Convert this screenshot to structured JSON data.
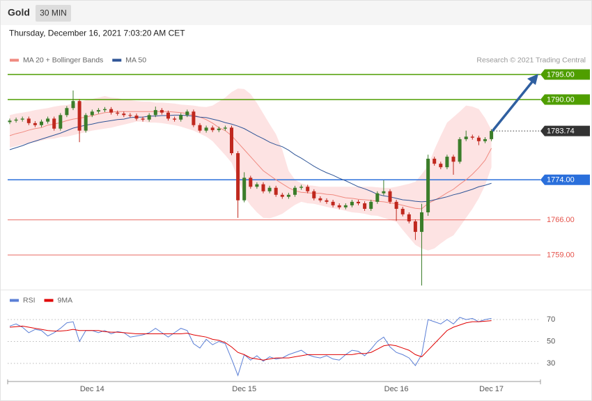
{
  "header": {
    "symbol": "Gold",
    "timeframe": "30 MIN",
    "timestamp": "Thursday, December 16, 2021 7:03:20 AM CET"
  },
  "chart_data": [
    {
      "type": "candlestick",
      "source": "Research © 2021 Trading Central",
      "categories": [
        null,
        null,
        null,
        null,
        null,
        null,
        null,
        null,
        null,
        null,
        null,
        null,
        null,
        "Dec 14",
        null,
        null,
        null,
        null,
        null,
        null,
        null,
        null,
        null,
        null,
        null,
        null,
        null,
        null,
        null,
        null,
        null,
        null,
        null,
        null,
        null,
        null,
        null,
        "Dec 15",
        null,
        null,
        null,
        null,
        null,
        null,
        null,
        null,
        null,
        null,
        null,
        null,
        null,
        null,
        null,
        null,
        null,
        null,
        null,
        null,
        null,
        null,
        null,
        "Dec 16",
        null,
        null,
        null,
        null,
        null,
        null,
        null,
        null,
        null,
        null,
        null,
        null,
        null,
        null,
        "Dec 17"
      ],
      "open": [
        1785.5,
        1785.8,
        1786.0,
        1786.2,
        1785.3,
        1784.9,
        1785.6,
        1786.2,
        1784.2,
        1786.9,
        1788.3,
        1789.7,
        1783.8,
        1786.9,
        1787.6,
        1787.9,
        1788.1,
        1787.4,
        1787.2,
        1786.9,
        1786.8,
        1786.2,
        1786.0,
        1786.9,
        1787.9,
        1787.4,
        1786.2,
        1786.0,
        1786.9,
        1787.6,
        1784.9,
        1783.8,
        1784.4,
        1783.9,
        1784.2,
        1784.4,
        1779.3,
        1769.9,
        1774.4,
        1772.6,
        1773.1,
        1771.7,
        1772.4,
        1771.0,
        1770.6,
        1771.0,
        1772.4,
        1772.6,
        1771.7,
        1770.3,
        1769.9,
        1769.6,
        1768.9,
        1768.5,
        1768.9,
        1769.6,
        1769.3,
        1768.2,
        1769.6,
        1771.3,
        1771.7,
        1769.6,
        1768.2,
        1767.1,
        1765.7,
        1763.6,
        1767.5,
        1778.2,
        1777.2,
        1776.5,
        1778.6,
        1777.6,
        1782.1,
        1782.6,
        1782.4,
        1781.7,
        1782.1
      ],
      "high": [
        1786.2,
        1786.4,
        1786.6,
        1786.6,
        1785.7,
        1786.0,
        1786.6,
        1786.6,
        1787.3,
        1788.7,
        1791.8,
        1790.1,
        1787.3,
        1788.0,
        1788.3,
        1788.5,
        1788.5,
        1787.8,
        1787.6,
        1787.3,
        1787.2,
        1786.6,
        1787.3,
        1788.6,
        1788.3,
        1787.8,
        1786.6,
        1787.3,
        1788.0,
        1788.0,
        1785.3,
        1784.8,
        1784.8,
        1784.6,
        1784.8,
        1784.8,
        1779.7,
        1775.5,
        1774.8,
        1773.5,
        1773.5,
        1772.8,
        1772.8,
        1771.4,
        1771.4,
        1772.8,
        1773.0,
        1773.0,
        1772.1,
        1770.7,
        1770.3,
        1770.0,
        1769.3,
        1769.3,
        1770.0,
        1770.0,
        1769.7,
        1770.0,
        1771.7,
        1773.9,
        1772.1,
        1770.0,
        1768.6,
        1767.5,
        1766.1,
        1769.2,
        1779.0,
        1778.6,
        1777.6,
        1779.0,
        1779.0,
        1782.5,
        1783.8,
        1783.0,
        1782.8,
        1782.5,
        1784.1
      ],
      "low": [
        1785.1,
        1785.4,
        1785.6,
        1784.9,
        1784.5,
        1784.5,
        1785.2,
        1783.8,
        1783.8,
        1786.5,
        1787.9,
        1781.5,
        1783.4,
        1786.5,
        1787.2,
        1787.5,
        1787.0,
        1786.8,
        1786.5,
        1786.4,
        1785.8,
        1785.6,
        1785.6,
        1786.5,
        1787.0,
        1785.8,
        1785.6,
        1785.6,
        1786.5,
        1784.5,
        1783.4,
        1783.4,
        1783.5,
        1783.5,
        1783.8,
        1778.9,
        1766.4,
        1769.5,
        1772.2,
        1772.2,
        1771.3,
        1771.3,
        1770.6,
        1770.2,
        1770.2,
        1770.6,
        1772.0,
        1771.3,
        1769.9,
        1769.5,
        1769.2,
        1768.5,
        1768.1,
        1768.1,
        1768.5,
        1768.9,
        1767.8,
        1767.8,
        1769.2,
        1770.9,
        1769.2,
        1765.8,
        1766.7,
        1765.3,
        1762.0,
        1752.9,
        1766.8,
        1776.8,
        1776.1,
        1776.1,
        1775.0,
        1777.2,
        1781.7,
        1782.0,
        1780.9,
        1781.3,
        1781.7
      ],
      "close": [
        1785.8,
        1786.0,
        1786.2,
        1785.3,
        1784.9,
        1785.6,
        1786.2,
        1784.2,
        1786.9,
        1788.3,
        1789.7,
        1783.8,
        1786.9,
        1787.6,
        1787.9,
        1788.1,
        1787.4,
        1787.2,
        1786.9,
        1786.8,
        1786.2,
        1786.0,
        1786.9,
        1787.9,
        1787.4,
        1786.2,
        1786.0,
        1786.9,
        1787.6,
        1784.9,
        1783.8,
        1784.4,
        1783.9,
        1784.2,
        1784.4,
        1779.3,
        1769.9,
        1774.4,
        1772.6,
        1773.1,
        1771.7,
        1772.4,
        1771.0,
        1770.6,
        1771.0,
        1772.4,
        1772.6,
        1771.7,
        1770.3,
        1769.9,
        1769.6,
        1768.9,
        1768.5,
        1768.9,
        1769.6,
        1769.3,
        1768.2,
        1769.6,
        1771.3,
        1771.7,
        1769.6,
        1768.2,
        1767.1,
        1765.7,
        1763.6,
        1767.5,
        1778.2,
        1777.2,
        1776.5,
        1778.6,
        1777.6,
        1782.1,
        1782.6,
        1782.4,
        1781.7,
        1782.1,
        1783.74
      ],
      "up_color": "#3b7d2a",
      "down_color": "#c0281e",
      "series": [
        {
          "name": "MA 20 + Bollinger Bands",
          "color": "#f08a80",
          "band_color": "#fde3e3",
          "values": [
            1782.8,
            1783.2,
            1783.5,
            1783.9,
            1784.2,
            1784.4,
            1784.9,
            1785.1,
            1785.4,
            1785.8,
            1786.1,
            1786.3,
            1786.5,
            1786.8,
            1787.1,
            1787.4,
            1787.5,
            1787.6,
            1787.6,
            1787.6,
            1787.6,
            1787.6,
            1787.6,
            1787.6,
            1787.6,
            1787.6,
            1787.5,
            1787.4,
            1787.2,
            1786.9,
            1786.5,
            1786.0,
            1785.3,
            1784.4,
            1783.8,
            1782.8,
            1781.4,
            1780.0,
            1778.6,
            1777.2,
            1775.8,
            1774.9,
            1774.0,
            1773.2,
            1772.4,
            1771.8,
            1771.5,
            1771.4,
            1771.3,
            1771.3,
            1771.1,
            1771.0,
            1770.7,
            1770.4,
            1770.3,
            1770.1,
            1770.0,
            1769.9,
            1769.7,
            1769.6,
            1769.4,
            1769.2,
            1768.9,
            1768.6,
            1768.3,
            1768.2,
            1769.3,
            1769.9,
            1770.6,
            1771.4,
            1772.1,
            1773.1,
            1774.0,
            1775.1,
            1776.4,
            1777.9,
            1780.3
          ],
          "upper": [
            1786.9,
            1787.2,
            1787.4,
            1787.6,
            1787.9,
            1788.1,
            1788.3,
            1788.6,
            1788.8,
            1788.9,
            1789.2,
            1789.4,
            1789.9,
            1790.1,
            1790.4,
            1790.7,
            1790.4,
            1790.3,
            1790.0,
            1789.9,
            1789.7,
            1789.6,
            1789.6,
            1789.4,
            1789.4,
            1789.3,
            1789.2,
            1789.0,
            1788.9,
            1788.8,
            1788.6,
            1788.5,
            1788.8,
            1789.6,
            1790.4,
            1791.5,
            1792.2,
            1792.1,
            1791.1,
            1789.3,
            1787.2,
            1785.1,
            1783.1,
            1780.0,
            1775.8,
            1774.0,
            1773.3,
            1772.9,
            1772.8,
            1772.6,
            1772.6,
            1772.6,
            1772.6,
            1772.6,
            1772.6,
            1772.6,
            1772.6,
            1772.6,
            1772.5,
            1772.4,
            1772.4,
            1772.6,
            1772.9,
            1773.2,
            1773.6,
            1775.1,
            1776.8,
            1780.0,
            1782.8,
            1785.4,
            1786.5,
            1787.6,
            1788.8,
            1788.6,
            1788.1,
            1786.3,
            1783.9
          ],
          "lower": [
            1780.4,
            1780.7,
            1781.0,
            1781.3,
            1781.5,
            1781.8,
            1782.1,
            1782.2,
            1782.5,
            1782.6,
            1782.9,
            1783.2,
            1783.5,
            1783.8,
            1784.0,
            1784.2,
            1784.4,
            1784.7,
            1785.0,
            1785.3,
            1785.6,
            1785.6,
            1785.4,
            1785.4,
            1785.3,
            1785.1,
            1784.9,
            1784.6,
            1784.2,
            1783.8,
            1783.2,
            1782.6,
            1781.7,
            1780.3,
            1778.9,
            1777.4,
            1774.4,
            1770.7,
            1768.9,
            1767.5,
            1766.4,
            1766.3,
            1766.7,
            1767.2,
            1768.1,
            1769.0,
            1769.6,
            1769.3,
            1769.2,
            1768.9,
            1768.6,
            1768.3,
            1768.1,
            1767.8,
            1767.5,
            1767.4,
            1767.2,
            1766.9,
            1766.8,
            1766.4,
            1766.0,
            1765.6,
            1764.0,
            1762.5,
            1761.0,
            1760.3,
            1759.9,
            1760.3,
            1761.3,
            1762.2,
            1762.9,
            1764.6,
            1766.4,
            1768.2,
            1770.3,
            1772.9,
            1776.5
          ]
        },
        {
          "name": "MA 50",
          "color": "#2f5597",
          "values": [
            1780.0,
            1780.4,
            1780.8,
            1781.3,
            1781.7,
            1782.1,
            1782.5,
            1782.9,
            1783.3,
            1783.8,
            1784.3,
            1784.6,
            1784.9,
            1785.1,
            1785.4,
            1785.6,
            1785.8,
            1786.0,
            1786.1,
            1786.4,
            1786.5,
            1786.5,
            1786.7,
            1786.7,
            1786.8,
            1786.8,
            1786.9,
            1786.9,
            1786.8,
            1786.7,
            1786.5,
            1786.4,
            1786.1,
            1785.8,
            1785.4,
            1785.1,
            1784.7,
            1784.2,
            1783.5,
            1782.8,
            1782.2,
            1781.5,
            1781.0,
            1780.6,
            1779.9,
            1779.0,
            1778.3,
            1777.5,
            1776.7,
            1776.0,
            1775.4,
            1774.9,
            1774.3,
            1773.8,
            1773.2,
            1772.6,
            1772.2,
            1771.7,
            1771.1,
            1770.8,
            1770.6,
            1770.3,
            1770.0,
            1769.9,
            1769.7,
            1769.6,
            1769.7,
            1770.0,
            1770.3,
            1770.6,
            1771.0,
            1771.3,
            1771.7,
            1772.1,
            1772.6,
            1772.9,
            1773.3
          ]
        }
      ],
      "ylim": [
        1752,
        1797
      ],
      "levels": [
        {
          "value": 1795,
          "label": "1795.00",
          "color": "#4f9e00",
          "line": "solid",
          "tag": "box"
        },
        {
          "value": 1790,
          "label": "1790.00",
          "color": "#4f9e00",
          "line": "solid",
          "tag": "box"
        },
        {
          "value": 1783.74,
          "label": "1783.74",
          "color": "#333333",
          "line": "dotted",
          "tag": "box"
        },
        {
          "value": 1774,
          "label": "1774.00",
          "color": "#2a6fdb",
          "line": "solid",
          "tag": "box"
        },
        {
          "value": 1766,
          "label": "1766.00",
          "color": "#e5534b",
          "line": "solid",
          "tag": "text"
        },
        {
          "value": 1759,
          "label": "1759.00",
          "color": "#e5534b",
          "line": "solid",
          "tag": "text"
        }
      ]
    },
    {
      "type": "line",
      "series": [
        {
          "name": "RSI",
          "color": "#5b7fd6",
          "values": [
            64,
            66,
            63,
            58,
            61,
            60,
            55,
            58,
            62,
            67,
            68,
            50,
            60,
            60,
            58,
            60,
            57,
            59,
            58,
            54,
            55,
            56,
            58,
            62,
            58,
            54,
            58,
            62,
            60,
            48,
            44,
            52,
            47,
            50,
            48,
            34,
            19,
            38,
            33,
            37,
            32,
            36,
            34,
            35,
            38,
            40,
            42,
            38,
            36,
            35,
            37,
            34,
            33,
            38,
            42,
            41,
            37,
            43,
            50,
            54,
            45,
            40,
            38,
            35,
            28,
            38,
            70,
            68,
            66,
            70,
            66,
            72,
            70,
            71,
            68,
            70,
            71
          ]
        },
        {
          "name": "9MA",
          "color": "#e00000",
          "values": [
            63,
            63.5,
            64,
            63,
            62,
            61,
            60,
            59.5,
            59.5,
            60,
            61,
            60,
            60,
            60,
            60,
            59,
            58.5,
            58.5,
            58,
            57.5,
            57,
            57,
            57,
            57,
            57,
            57,
            57,
            57,
            57.5,
            56,
            55,
            54,
            52,
            51,
            49,
            45,
            40,
            38,
            35,
            34,
            33,
            34,
            35,
            35,
            35,
            36,
            37,
            38,
            38,
            38,
            38,
            38,
            38,
            38,
            38,
            39,
            39,
            40,
            43,
            46,
            47,
            46,
            44,
            42,
            38,
            36,
            42,
            48,
            54,
            60,
            63,
            65,
            67,
            68,
            68,
            68.5,
            69
          ]
        }
      ],
      "ylim": [
        15,
        80
      ],
      "yticks": [
        70,
        50,
        30
      ],
      "grid": true
    }
  ]
}
